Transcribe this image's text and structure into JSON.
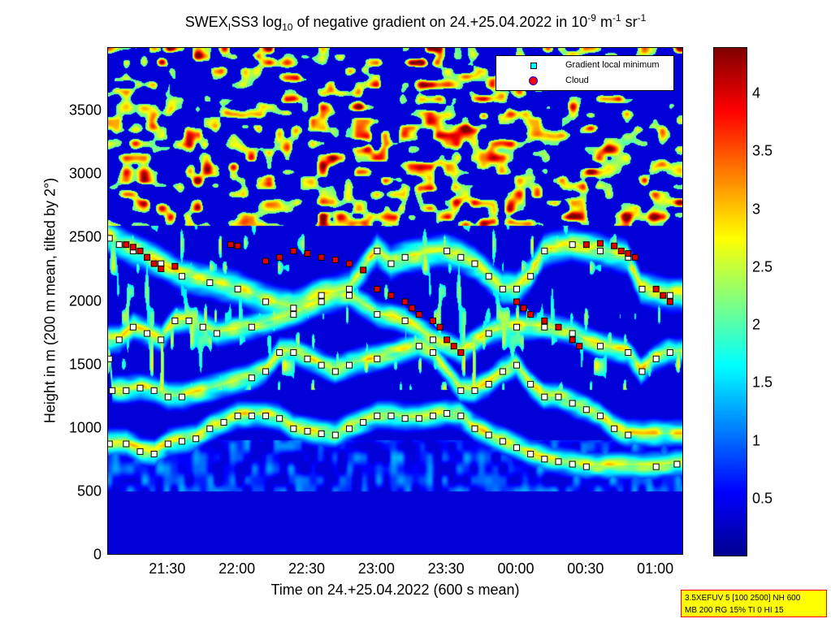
{
  "title": {
    "p1": "SWEX",
    "sub1": "I",
    "p2": "SS3 log",
    "sub2": "10",
    "p3": " of negative gradient on 24.+25.04.2022 in 10",
    "sup1": "-9",
    "p4": " m",
    "sup2": "-1",
    "p5": " sr",
    "sup3": "-1"
  },
  "legend": {
    "min_label": "Gradient local minimum",
    "cloud_label": "Cloud"
  },
  "infobox": {
    "line1": "3.5XEFUV 5 [100 2500] NH 600",
    "line2": "MB 200 RG 15% TI 0 HI 15"
  },
  "chart_data": {
    "type": "heatmap",
    "xlabel": "Time on 24.+25.04.2022 (600 s mean)",
    "ylabel": "Height in m (200 m mean, tilted by 2°)",
    "x_ticks": [
      "21:30",
      "22:00",
      "22:30",
      "23:00",
      "23:30",
      "00:00",
      "00:30",
      "01:00"
    ],
    "x_tick_hours": [
      21.5,
      22.0,
      22.5,
      23.0,
      23.5,
      24.0,
      24.5,
      25.0
    ],
    "xlim_hours": [
      21.07,
      25.2
    ],
    "y_ticks": [
      "0",
      "500",
      "1000",
      "1500",
      "2000",
      "2500",
      "3000",
      "3500"
    ],
    "y_tick_values": [
      0,
      500,
      1000,
      1500,
      2000,
      2500,
      3000,
      3500
    ],
    "ylim": [
      0,
      4000
    ],
    "colorbar_ticks": [
      "0.5",
      "1",
      "1.5",
      "2",
      "2.5",
      "3",
      "3.5",
      "4"
    ],
    "colorbar_tick_values": [
      0.5,
      1,
      1.5,
      2,
      2.5,
      3,
      3.5,
      4
    ],
    "clim": [
      0,
      4.4
    ],
    "colormap": [
      "#00008f",
      "#0000ff",
      "#0080ff",
      "#00ffff",
      "#80ff80",
      "#ffff00",
      "#ff8000",
      "#ff0000",
      "#800000"
    ],
    "layers": [
      {
        "name": "Gradient local minimum",
        "height_m": [
          880,
          880,
          820,
          800,
          880,
          900,
          920,
          1000,
          1050,
          1100,
          1100,
          1100,
          1080,
          1000,
          980,
          960,
          950,
          1000,
          1050,
          1100,
          1100,
          1080,
          1080,
          1100,
          1120,
          1100,
          1000,
          950,
          900,
          850,
          800,
          760,
          740,
          720,
          700,
          700,
          720
        ],
        "time_h": [
          21.08,
          21.2,
          21.3,
          21.4,
          21.5,
          21.6,
          21.7,
          21.8,
          21.9,
          22.0,
          22.1,
          22.2,
          22.3,
          22.4,
          22.5,
          22.6,
          22.7,
          22.8,
          22.9,
          23.0,
          23.1,
          23.2,
          23.3,
          23.4,
          23.5,
          23.6,
          23.7,
          23.8,
          23.9,
          24.0,
          24.1,
          24.2,
          24.3,
          24.4,
          24.5,
          25.0,
          25.15
        ]
      },
      {
        "name": "Gradient local minimum",
        "height_m": [
          1550,
          1300,
          1300,
          1320,
          1300,
          1250,
          1250,
          1400,
          1450,
          1600,
          1600,
          1550,
          1500,
          1450,
          1500,
          1550,
          1650,
          1600,
          1300,
          1300,
          1350,
          1450,
          1500,
          1350,
          1250,
          1250,
          1200,
          1150,
          1100,
          1000,
          950
        ],
        "time_h": [
          21.08,
          21.1,
          21.2,
          21.3,
          21.4,
          21.5,
          21.6,
          22.1,
          22.2,
          22.3,
          22.4,
          22.5,
          22.6,
          22.7,
          22.8,
          23.0,
          23.3,
          23.4,
          23.6,
          23.7,
          23.8,
          23.9,
          24.0,
          24.1,
          24.2,
          24.3,
          24.4,
          24.5,
          24.6,
          24.7,
          24.8
        ]
      },
      {
        "name": "Gradient local minimum",
        "height_m": [
          1700,
          1800,
          1750,
          1700,
          1850,
          1850,
          1800,
          1750,
          1800,
          1900,
          2000,
          2050,
          1900,
          1850,
          1700,
          1600,
          1750,
          1800,
          1800,
          1750,
          1650,
          1600,
          1450,
          1550,
          1600
        ],
        "time_h": [
          21.15,
          21.25,
          21.35,
          21.45,
          21.55,
          21.65,
          21.75,
          21.85,
          22.1,
          22.4,
          22.6,
          22.8,
          23.0,
          23.2,
          23.4,
          23.6,
          23.8,
          24.0,
          24.2,
          24.4,
          24.6,
          24.8,
          24.9,
          25.0,
          25.1
        ]
      },
      {
        "name": "Gradient local minimum",
        "height_m": [
          2500,
          2450,
          2400,
          2350,
          2300,
          2200,
          2150,
          2100,
          2000,
          1950,
          2050,
          2100,
          2400,
          2300,
          2350,
          2400,
          2350,
          2300,
          2200,
          2100,
          2100,
          2200,
          2400,
          2450,
          2400,
          2350,
          2100,
          2050
        ],
        "time_h": [
          21.08,
          21.15,
          21.25,
          21.35,
          21.45,
          21.6,
          21.8,
          22.0,
          22.2,
          22.4,
          22.6,
          22.8,
          23.0,
          23.1,
          23.2,
          23.5,
          23.6,
          23.7,
          23.8,
          23.9,
          24.0,
          24.1,
          24.2,
          24.4,
          24.6,
          24.8,
          24.9,
          25.1
        ]
      },
      {
        "name": "Cloud",
        "height_m": [
          2450,
          2430,
          2400,
          2350,
          2300,
          2260,
          2280,
          2450,
          2440,
          2320,
          2350,
          2400,
          2380,
          2350,
          2330,
          2300,
          2250,
          2100,
          2050,
          2000,
          1950,
          1900,
          1850,
          1800,
          1700,
          1650,
          1600,
          2450,
          2460,
          2440,
          2400,
          2380,
          2350,
          2000,
          1950,
          1900,
          1850,
          1800,
          1700,
          1650,
          2100,
          2050,
          2000
        ],
        "time_h": [
          21.2,
          21.25,
          21.3,
          21.35,
          21.4,
          21.45,
          21.55,
          21.95,
          22.0,
          22.2,
          22.3,
          22.4,
          22.5,
          22.6,
          22.7,
          22.8,
          22.9,
          23.0,
          23.1,
          23.2,
          23.25,
          23.3,
          23.4,
          23.45,
          23.5,
          23.55,
          23.6,
          24.5,
          24.6,
          24.7,
          24.75,
          24.8,
          24.85,
          24.0,
          24.05,
          24.1,
          24.2,
          24.3,
          24.4,
          24.45,
          25.0,
          25.05,
          25.1
        ]
      }
    ]
  }
}
